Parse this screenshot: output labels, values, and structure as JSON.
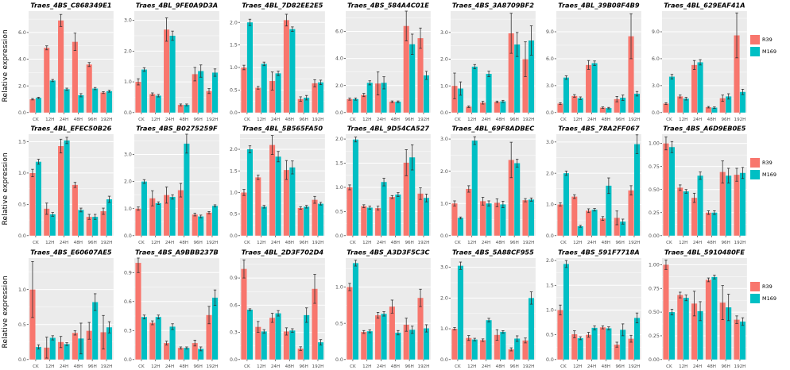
{
  "figure": {
    "ylabel": "Relative expression",
    "categories": [
      "CK",
      "12H",
      "24H",
      "48H",
      "96H",
      "192H"
    ],
    "legend": [
      {
        "name": "R39",
        "color": "#F8766D"
      },
      {
        "name": "M169",
        "color": "#00BFC4"
      }
    ],
    "colors": {
      "panel_background": "#EBEBEB",
      "gridline": "#FFFFFF",
      "axis_text": "#4D4D4D",
      "title_text": "#000000",
      "errorbar": "#333333"
    }
  },
  "chart_data": [
    {
      "type": "bar",
      "title": "Traes_4BS_C868349E1",
      "tick_labels": [
        "0.0",
        "2.0",
        "4.0",
        "6.0"
      ],
      "ylim": [
        0,
        7.6
      ],
      "series": [
        {
          "name": "R39",
          "values": [
            1.0,
            4.85,
            6.9,
            5.3,
            3.6,
            1.5
          ],
          "err": [
            0.05,
            0.15,
            0.45,
            0.65,
            0.15,
            0.07
          ]
        },
        {
          "name": "M169",
          "values": [
            1.1,
            2.4,
            1.75,
            1.3,
            1.8,
            1.6
          ],
          "err": [
            0.05,
            0.08,
            0.08,
            0.12,
            0.08,
            0.07
          ]
        }
      ]
    },
    {
      "type": "bar",
      "title": "Traes_4BL_9FE0A9D3A",
      "tick_labels": [
        "0.0",
        "1.0",
        "2.0",
        "3.0"
      ],
      "ylim": [
        0,
        3.3
      ],
      "series": [
        {
          "name": "R39",
          "values": [
            1.0,
            0.6,
            2.7,
            0.25,
            1.25,
            0.7
          ],
          "err": [
            0.1,
            0.04,
            0.38,
            0.03,
            0.22,
            0.08
          ]
        },
        {
          "name": "M169",
          "values": [
            1.4,
            0.55,
            2.5,
            0.25,
            1.35,
            1.3
          ],
          "err": [
            0.06,
            0.04,
            0.15,
            0.03,
            0.2,
            0.12
          ]
        }
      ]
    },
    {
      "type": "bar",
      "title": "Traes_4BL_7D82EE2E5",
      "tick_labels": [
        "0.0",
        "0.5",
        "1.0",
        "1.5",
        "2.0"
      ],
      "ylim": [
        0,
        2.25
      ],
      "series": [
        {
          "name": "R39",
          "values": [
            1.0,
            0.55,
            0.7,
            2.05,
            0.3,
            0.65
          ],
          "err": [
            0.05,
            0.03,
            0.2,
            0.13,
            0.05,
            0.08
          ]
        },
        {
          "name": "M169",
          "values": [
            2.0,
            1.08,
            0.87,
            1.85,
            0.33,
            0.67
          ],
          "err": [
            0.07,
            0.04,
            0.05,
            0.05,
            0.05,
            0.05
          ]
        }
      ]
    },
    {
      "type": "bar",
      "title": "Traes_4BS_584A4C01E",
      "tick_labels": [
        "0.0",
        "2.0",
        "4.0",
        "6.0"
      ],
      "ylim": [
        0,
        7.5
      ],
      "series": [
        {
          "name": "R39",
          "values": [
            1.0,
            1.3,
            2.15,
            0.8,
            6.4,
            5.5
          ],
          "err": [
            0.08,
            0.12,
            0.85,
            0.06,
            1.1,
            0.75
          ]
        },
        {
          "name": "M169",
          "values": [
            1.0,
            2.2,
            2.2,
            0.8,
            5.05,
            2.75
          ],
          "err": [
            0.08,
            0.15,
            0.45,
            0.06,
            0.75,
            0.3
          ]
        }
      ]
    },
    {
      "type": "bar",
      "title": "Traes_4BS_3A8709BF2",
      "tick_labels": [
        "0.0",
        "1.0",
        "2.0",
        "3.0"
      ],
      "ylim": [
        0,
        3.8
      ],
      "series": [
        {
          "name": "R39",
          "values": [
            1.0,
            0.22,
            0.37,
            0.4,
            2.97,
            2.0
          ],
          "err": [
            0.48,
            0.03,
            0.05,
            0.03,
            0.75,
            0.65
          ]
        },
        {
          "name": "M169",
          "values": [
            0.9,
            1.72,
            1.45,
            0.42,
            2.55,
            2.7
          ],
          "err": [
            0.25,
            0.08,
            0.1,
            0.04,
            0.45,
            0.55
          ]
        }
      ]
    },
    {
      "type": "bar",
      "title": "Traes_4BL_39B08F4B9",
      "tick_labels": [
        "0.0",
        "3.0",
        "6.0",
        "9.0"
      ],
      "ylim": [
        0,
        11.3
      ],
      "series": [
        {
          "name": "R39",
          "values": [
            1.0,
            1.85,
            5.3,
            0.55,
            1.5,
            8.5
          ],
          "err": [
            0.1,
            0.15,
            0.5,
            0.08,
            0.3,
            2.5
          ]
        },
        {
          "name": "M169",
          "values": [
            3.9,
            1.6,
            5.5,
            0.5,
            1.65,
            2.1
          ],
          "err": [
            0.2,
            0.15,
            0.25,
            0.08,
            0.3,
            0.25
          ]
        }
      ]
    },
    {
      "type": "bar",
      "title": "Traes_4BL_629EAF41A",
      "tick_labels": [
        "0.0",
        "3.0",
        "6.0",
        "9.0"
      ],
      "ylim": [
        0,
        11.3
      ],
      "series": [
        {
          "name": "R39",
          "values": [
            1.0,
            1.8,
            5.3,
            0.6,
            1.6,
            8.6
          ],
          "err": [
            0.1,
            0.15,
            0.5,
            0.08,
            0.35,
            2.5
          ]
        },
        {
          "name": "M169",
          "values": [
            4.0,
            1.55,
            5.6,
            0.55,
            1.8,
            2.3
          ],
          "err": [
            0.25,
            0.15,
            0.3,
            0.08,
            0.3,
            0.3
          ]
        }
      ]
    },
    {
      "type": "bar",
      "title": "Traes_4BL_EFEC50B26",
      "tick_labels": [
        "0.0",
        "0.5",
        "1.0",
        "1.5"
      ],
      "ylim": [
        0,
        1.62
      ],
      "series": [
        {
          "name": "R39",
          "values": [
            1.0,
            0.43,
            1.43,
            0.81,
            0.3,
            0.39
          ],
          "err": [
            0.06,
            0.09,
            0.11,
            0.04,
            0.04,
            0.05
          ]
        },
        {
          "name": "M169",
          "values": [
            1.18,
            0.34,
            1.52,
            0.41,
            0.3,
            0.58
          ],
          "err": [
            0.04,
            0.03,
            0.05,
            0.03,
            0.04,
            0.05
          ]
        }
      ]
    },
    {
      "type": "bar",
      "title": "Traes_4BS_B0275259F",
      "tick_labels": [
        "0.0",
        "1.0",
        "2.0",
        "3.0"
      ],
      "ylim": [
        0,
        3.75
      ],
      "series": [
        {
          "name": "R39",
          "values": [
            1.0,
            1.38,
            1.5,
            1.68,
            0.78,
            0.85
          ],
          "err": [
            0.06,
            0.28,
            0.3,
            0.25,
            0.05,
            0.04
          ]
        },
        {
          "name": "M169",
          "values": [
            2.0,
            1.2,
            1.43,
            3.4,
            0.71,
            1.1
          ],
          "err": [
            0.07,
            0.05,
            0.08,
            0.35,
            0.05,
            0.04
          ]
        }
      ]
    },
    {
      "type": "bar",
      "title": "Traes_4BL_5B565FA50",
      "tick_labels": [
        "0.0",
        "0.5",
        "1.0",
        "1.5",
        "2.0"
      ],
      "ylim": [
        0,
        2.35
      ],
      "series": [
        {
          "name": "R39",
          "values": [
            1.0,
            1.35,
            2.1,
            1.52,
            0.64,
            0.83
          ],
          "err": [
            0.07,
            0.05,
            0.22,
            0.22,
            0.03,
            0.08
          ]
        },
        {
          "name": "M169",
          "values": [
            2.0,
            0.67,
            1.83,
            1.58,
            0.67,
            0.74
          ],
          "err": [
            0.08,
            0.03,
            0.12,
            0.15,
            0.03,
            0.03
          ]
        }
      ]
    },
    {
      "type": "bar",
      "title": "Traes_4BL_9D54CA527",
      "tick_labels": [
        "0.0",
        "0.5",
        "1.0",
        "1.5",
        "2.0"
      ],
      "ylim": [
        0,
        2.1
      ],
      "series": [
        {
          "name": "R39",
          "values": [
            1.0,
            0.61,
            0.57,
            0.8,
            1.51,
            0.87
          ],
          "err": [
            0.05,
            0.03,
            0.04,
            0.03,
            0.27,
            0.12
          ]
        },
        {
          "name": "M169",
          "values": [
            1.99,
            0.58,
            1.11,
            0.85,
            1.62,
            0.78
          ],
          "err": [
            0.05,
            0.03,
            0.08,
            0.04,
            0.26,
            0.08
          ]
        }
      ]
    },
    {
      "type": "bar",
      "title": "Traes_4BL_69F8ADBEC",
      "tick_labels": [
        "0.0",
        "1.0",
        "2.0",
        "3.0"
      ],
      "ylim": [
        0,
        3.15
      ],
      "series": [
        {
          "name": "R39",
          "values": [
            1.0,
            1.45,
            1.07,
            1.02,
            2.35,
            1.1
          ],
          "err": [
            0.08,
            0.1,
            0.12,
            0.12,
            0.55,
            0.05
          ]
        },
        {
          "name": "M169",
          "values": [
            0.55,
            2.95,
            1.0,
            0.97,
            2.25,
            1.12
          ],
          "err": [
            0.03,
            0.12,
            0.08,
            0.1,
            0.12,
            0.05
          ]
        }
      ]
    },
    {
      "type": "bar",
      "title": "Traes_4BS_78A2FF067",
      "tick_labels": [
        "0.0",
        "1.0",
        "2.0",
        "3.0"
      ],
      "ylim": [
        0,
        3.25
      ],
      "series": [
        {
          "name": "R39",
          "values": [
            1.0,
            1.25,
            0.8,
            0.55,
            0.57,
            1.45
          ],
          "err": [
            0.05,
            0.06,
            0.06,
            0.06,
            0.22,
            0.15
          ]
        },
        {
          "name": "M169",
          "values": [
            2.0,
            0.3,
            0.83,
            1.6,
            0.45,
            2.93
          ],
          "err": [
            0.07,
            0.03,
            0.04,
            0.25,
            0.08,
            0.3
          ]
        }
      ]
    },
    {
      "type": "bar",
      "title": "Traes_4BS_A6D9EB0E5",
      "tick_labels": [
        "0.00",
        "0.25",
        "0.50",
        "0.75",
        "1.00"
      ],
      "ylim": [
        0,
        1.1
      ],
      "series": [
        {
          "name": "R39",
          "values": [
            1.0,
            0.52,
            0.41,
            0.25,
            0.69,
            0.66
          ],
          "err": [
            0.07,
            0.03,
            0.05,
            0.02,
            0.12,
            0.07
          ]
        },
        {
          "name": "M169",
          "values": [
            0.96,
            0.48,
            0.65,
            0.25,
            0.65,
            0.68
          ],
          "err": [
            0.06,
            0.02,
            0.04,
            0.02,
            0.08,
            0.06
          ]
        }
      ]
    },
    {
      "type": "bar",
      "title": "Traes_4BS_E60607AE5",
      "tick_labels": [
        "0.0",
        "0.5",
        "1.0"
      ],
      "ylim": [
        0,
        1.45
      ],
      "series": [
        {
          "name": "R39",
          "values": [
            1.0,
            0.17,
            0.25,
            0.38,
            0.41,
            0.39
          ],
          "err": [
            0.4,
            0.15,
            0.08,
            0.03,
            0.12,
            0.24
          ]
        },
        {
          "name": "M169",
          "values": [
            0.18,
            0.31,
            0.22,
            0.3,
            0.82,
            0.46
          ],
          "err": [
            0.03,
            0.03,
            0.02,
            0.22,
            0.12,
            0.08
          ]
        }
      ]
    },
    {
      "type": "bar",
      "title": "Traes_4BS_A9BBB237B",
      "tick_labels": [
        "0.0",
        "0.3",
        "0.6",
        "0.9"
      ],
      "ylim": [
        0,
        1.05
      ],
      "series": [
        {
          "name": "R39",
          "values": [
            1.0,
            0.38,
            0.17,
            0.12,
            0.17,
            0.46
          ],
          "err": [
            0.1,
            0.02,
            0.02,
            0.01,
            0.03,
            0.09
          ]
        },
        {
          "name": "M169",
          "values": [
            0.44,
            0.44,
            0.34,
            0.12,
            0.11,
            0.64
          ],
          "err": [
            0.02,
            0.02,
            0.03,
            0.01,
            0.02,
            0.08
          ]
        }
      ]
    },
    {
      "type": "bar",
      "title": "Traes_4BL_2D3F702D4",
      "tick_labels": [
        "0.0",
        "0.3",
        "0.6",
        "0.9"
      ],
      "ylim": [
        0,
        1.12
      ],
      "series": [
        {
          "name": "R39",
          "values": [
            1.0,
            0.36,
            0.46,
            0.31,
            0.12,
            0.78
          ],
          "err": [
            0.1,
            0.06,
            0.05,
            0.04,
            0.02,
            0.16
          ]
        },
        {
          "name": "M169",
          "values": [
            0.55,
            0.31,
            0.51,
            0.32,
            0.49,
            0.19
          ],
          "err": [
            0.01,
            0.02,
            0.03,
            0.02,
            0.08,
            0.03
          ]
        }
      ]
    },
    {
      "type": "bar",
      "title": "Traes_4BS_A3D3F5C3C",
      "tick_labels": [
        "0.0",
        "0.5",
        "1.0"
      ],
      "ylim": [
        0,
        1.4
      ],
      "series": [
        {
          "name": "R39",
          "values": [
            1.0,
            0.38,
            0.61,
            0.73,
            0.48,
            0.85
          ],
          "err": [
            0.05,
            0.02,
            0.04,
            0.09,
            0.09,
            0.12
          ]
        },
        {
          "name": "M169",
          "values": [
            1.33,
            0.39,
            0.63,
            0.37,
            0.41,
            0.43
          ],
          "err": [
            0.04,
            0.02,
            0.03,
            0.03,
            0.05,
            0.05
          ]
        }
      ]
    },
    {
      "type": "bar",
      "title": "Traes_4BS_5A88CF955",
      "tick_labels": [
        "0.0",
        "1.0",
        "2.0",
        "3.0"
      ],
      "ylim": [
        0,
        3.3
      ],
      "series": [
        {
          "name": "R39",
          "values": [
            1.0,
            0.7,
            0.63,
            0.8,
            0.33,
            0.62
          ],
          "err": [
            0.04,
            0.08,
            0.04,
            0.17,
            0.05,
            0.08
          ]
        },
        {
          "name": "M169",
          "values": [
            3.05,
            0.65,
            1.28,
            0.9,
            0.68,
            2.0
          ],
          "err": [
            0.12,
            0.04,
            0.06,
            0.04,
            0.09,
            0.2
          ]
        }
      ]
    },
    {
      "type": "bar",
      "title": "Traes_4BS_591F7718A",
      "tick_labels": [
        "0.0",
        "0.5",
        "1.0",
        "1.5",
        "2.0"
      ],
      "ylim": [
        0,
        2.05
      ],
      "series": [
        {
          "name": "R39",
          "values": [
            1.0,
            0.51,
            0.5,
            0.65,
            0.3,
            0.42
          ],
          "err": [
            0.1,
            0.07,
            0.05,
            0.03,
            0.05,
            0.07
          ]
        },
        {
          "name": "M169",
          "values": [
            1.93,
            0.43,
            0.64,
            0.63,
            0.6,
            0.84
          ],
          "err": [
            0.07,
            0.03,
            0.04,
            0.03,
            0.12,
            0.1
          ]
        }
      ]
    },
    {
      "type": "bar",
      "title": "Traes_4BL_5910480FE",
      "tick_labels": [
        "0.00",
        "0.25",
        "0.50",
        "0.75",
        "1.00"
      ],
      "ylim": [
        0,
        1.07
      ],
      "series": [
        {
          "name": "R39",
          "values": [
            1.0,
            0.68,
            0.59,
            0.84,
            0.6,
            0.42
          ],
          "err": [
            0.05,
            0.03,
            0.13,
            0.02,
            0.18,
            0.04
          ]
        },
        {
          "name": "M169",
          "values": [
            0.5,
            0.65,
            0.51,
            0.87,
            0.55,
            0.4
          ],
          "err": [
            0.03,
            0.03,
            0.1,
            0.02,
            0.14,
            0.04
          ]
        }
      ]
    }
  ]
}
